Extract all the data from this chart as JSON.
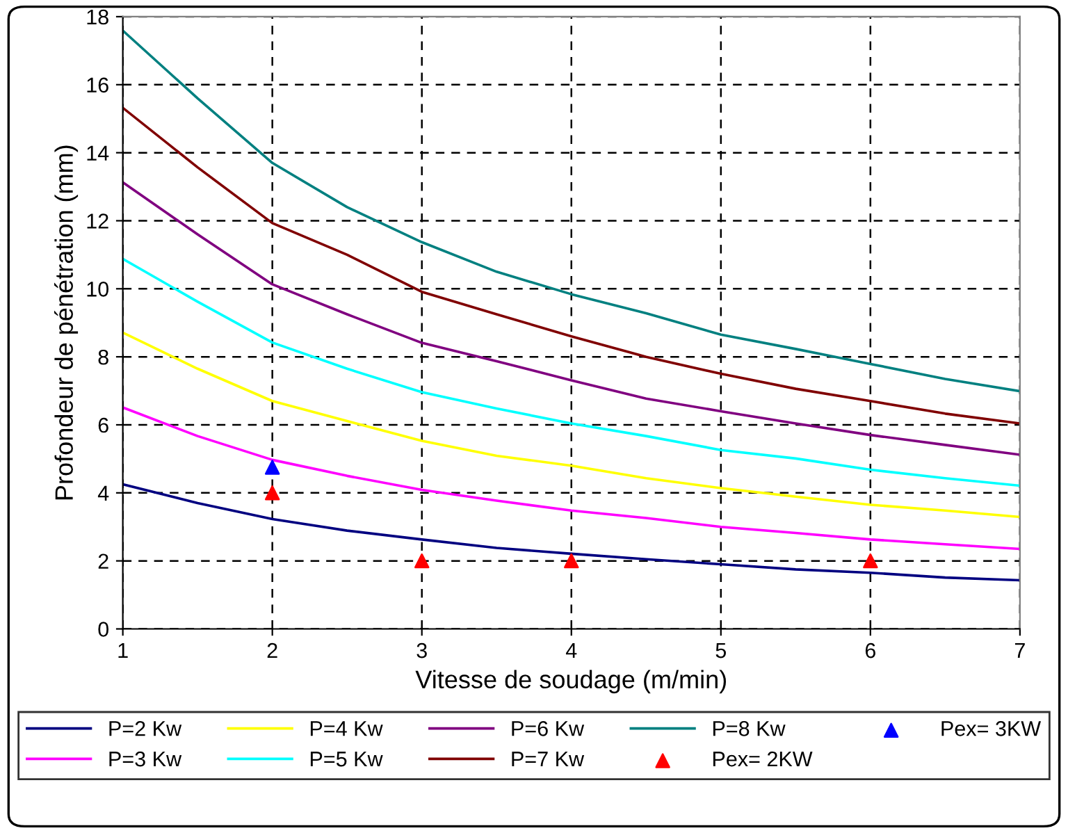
{
  "chart_data": {
    "type": "line",
    "xlabel": "Vitesse de soudage (m/min)",
    "ylabel": "Profondeur de pénétration (mm)",
    "x": [
      1,
      1.5,
      2,
      2.5,
      3,
      3.5,
      4,
      4.5,
      5,
      5.5,
      6,
      6.5,
      7
    ],
    "xlim": [
      1,
      7
    ],
    "xticks": [
      1,
      2,
      3,
      4,
      5,
      6,
      7
    ],
    "ylim": [
      0,
      18
    ],
    "yticks": [
      0,
      2,
      4,
      6,
      8,
      10,
      12,
      14,
      16,
      18
    ],
    "grid": true,
    "legend": "bottom",
    "line_style": "solid",
    "series": [
      {
        "name": "P=2 Kw",
        "color": "#000080",
        "values": [
          4.25,
          3.7,
          3.23,
          2.89,
          2.63,
          2.38,
          2.21,
          2.05,
          1.9,
          1.75,
          1.65,
          1.51,
          1.43
        ]
      },
      {
        "name": "P=3 Kw",
        "color": "#ff00ff",
        "values": [
          6.51,
          5.67,
          4.97,
          4.5,
          4.09,
          3.77,
          3.48,
          3.26,
          3.0,
          2.82,
          2.63,
          2.49,
          2.35
        ]
      },
      {
        "name": "P=4 Kw",
        "color": "#ffff00",
        "values": [
          8.71,
          7.65,
          6.7,
          6.11,
          5.53,
          5.09,
          4.8,
          4.43,
          4.14,
          3.89,
          3.65,
          3.48,
          3.29
        ]
      },
      {
        "name": "P=5 Kw",
        "color": "#00ffff",
        "values": [
          10.88,
          9.62,
          8.42,
          7.65,
          6.96,
          6.48,
          6.04,
          5.67,
          5.26,
          5.01,
          4.68,
          4.43,
          4.21
        ]
      },
      {
        "name": "P=6 Kw",
        "color": "#800080",
        "values": [
          13.13,
          11.6,
          10.13,
          9.25,
          8.41,
          7.87,
          7.31,
          6.77,
          6.4,
          6.04,
          5.7,
          5.41,
          5.12
        ]
      },
      {
        "name": "P=7 Kw",
        "color": "#800000",
        "values": [
          15.32,
          13.57,
          11.93,
          11.0,
          9.91,
          9.25,
          8.6,
          8.0,
          7.5,
          7.06,
          6.7,
          6.33,
          6.04
        ]
      },
      {
        "name": "P=8 Kw",
        "color": "#008080",
        "values": [
          17.59,
          15.6,
          13.7,
          12.4,
          11.37,
          10.5,
          9.84,
          9.28,
          8.65,
          8.23,
          7.79,
          7.35,
          6.99
        ]
      },
      {
        "name": "Pex= 2KW",
        "type": "scatter",
        "marker": "triangle",
        "color": "#ff0000",
        "x": [
          2,
          3,
          4,
          6
        ],
        "values": [
          4.0,
          2.0,
          2.0,
          2.0
        ]
      },
      {
        "name": "Pex= 3KW",
        "type": "scatter",
        "marker": "triangle",
        "color": "#0000ff",
        "x": [
          2
        ],
        "values": [
          4.75
        ]
      }
    ]
  }
}
